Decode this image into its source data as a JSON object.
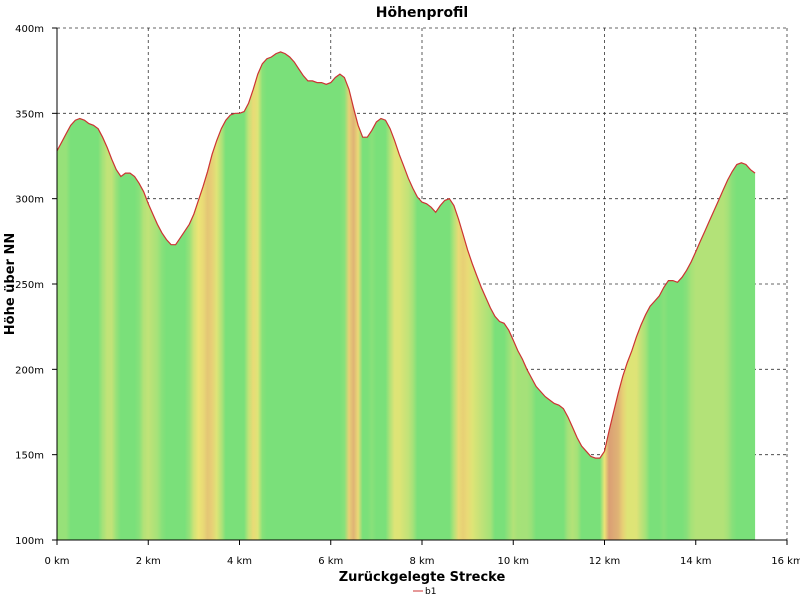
{
  "chart_data": {
    "type": "area",
    "title": "Höhenprofil",
    "xlabel": "Zurückgelegte Strecke",
    "ylabel": "Höhe über NN",
    "xlim": [
      0,
      16
    ],
    "ylim": [
      100,
      400
    ],
    "x_unit": "km",
    "y_unit": "m",
    "grid": true,
    "legend_position": "bottom-center",
    "x_ticks": [
      {
        "value": 0,
        "label": "0 km"
      },
      {
        "value": 2,
        "label": "2 km"
      },
      {
        "value": 4,
        "label": "4 km"
      },
      {
        "value": 6,
        "label": "6 km"
      },
      {
        "value": 8,
        "label": "8 km"
      },
      {
        "value": 10,
        "label": "10 km"
      },
      {
        "value": 12,
        "label": "12 km"
      },
      {
        "value": 14,
        "label": "14 km"
      },
      {
        "value": 16,
        "label": "16 km"
      }
    ],
    "y_ticks": [
      {
        "value": 100,
        "label": "100m"
      },
      {
        "value": 150,
        "label": "150m"
      },
      {
        "value": 200,
        "label": "200m"
      },
      {
        "value": 250,
        "label": "250m"
      },
      {
        "value": 300,
        "label": "300m"
      },
      {
        "value": 350,
        "label": "350m"
      },
      {
        "value": 400,
        "label": "400m"
      }
    ],
    "series": [
      {
        "name": "b1",
        "line_color": "#cc3333",
        "x": [
          0,
          0.1,
          0.2,
          0.3,
          0.4,
          0.5,
          0.6,
          0.7,
          0.8,
          0.9,
          1.0,
          1.1,
          1.2,
          1.3,
          1.4,
          1.5,
          1.6,
          1.7,
          1.8,
          1.9,
          2.0,
          2.1,
          2.2,
          2.3,
          2.4,
          2.5,
          2.6,
          2.7,
          2.8,
          2.9,
          3.0,
          3.1,
          3.2,
          3.3,
          3.4,
          3.5,
          3.6,
          3.7,
          3.8,
          3.9,
          4.0,
          4.1,
          4.2,
          4.3,
          4.4,
          4.5,
          4.6,
          4.7,
          4.8,
          4.9,
          5.0,
          5.1,
          5.2,
          5.3,
          5.4,
          5.5,
          5.6,
          5.7,
          5.8,
          5.9,
          6.0,
          6.1,
          6.2,
          6.3,
          6.4,
          6.5,
          6.6,
          6.7,
          6.8,
          6.9,
          7.0,
          7.1,
          7.2,
          7.3,
          7.4,
          7.5,
          7.6,
          7.7,
          7.8,
          7.9,
          8.0,
          8.1,
          8.2,
          8.3,
          8.4,
          8.5,
          8.6,
          8.7,
          8.8,
          8.9,
          9.0,
          9.1,
          9.2,
          9.3,
          9.4,
          9.5,
          9.6,
          9.7,
          9.8,
          9.9,
          10.0,
          10.1,
          10.2,
          10.3,
          10.4,
          10.5,
          10.6,
          10.7,
          10.8,
          10.9,
          11.0,
          11.1,
          11.2,
          11.3,
          11.4,
          11.5,
          11.6,
          11.7,
          11.8,
          11.9,
          12.0,
          12.1,
          12.2,
          12.3,
          12.4,
          12.5,
          12.6,
          12.7,
          12.8,
          12.9,
          13.0,
          13.1,
          13.2,
          13.3,
          13.4,
          13.5,
          13.6,
          13.7,
          13.8,
          13.9,
          14.0,
          14.1,
          14.2,
          14.3,
          14.4,
          14.5,
          14.6,
          14.7,
          14.8,
          14.9,
          15.0,
          15.1,
          15.2,
          15.3
        ],
        "y": [
          328,
          333,
          338,
          343,
          346,
          347,
          346,
          344,
          343,
          341,
          336,
          330,
          323,
          317,
          313,
          315,
          315,
          313,
          309,
          304,
          297,
          291,
          285,
          280,
          276,
          273,
          273,
          277,
          281,
          285,
          291,
          299,
          307,
          316,
          326,
          334,
          341,
          346,
          349,
          350,
          350,
          351,
          356,
          364,
          373,
          379,
          382,
          383,
          385,
          386,
          385,
          383,
          380,
          376,
          372,
          369,
          369,
          368,
          368,
          367,
          368,
          371,
          373,
          371,
          364,
          353,
          343,
          336,
          336,
          340,
          345,
          347,
          346,
          341,
          334,
          326,
          319,
          312,
          306,
          301,
          298,
          297,
          295,
          292,
          296,
          299,
          300,
          296,
          288,
          279,
          270,
          262,
          255,
          248,
          242,
          236,
          231,
          228,
          227,
          223,
          217,
          211,
          206,
          200,
          195,
          190,
          187,
          184,
          182,
          180,
          179,
          177,
          172,
          166,
          160,
          155,
          152,
          149,
          148,
          148,
          152,
          164,
          175,
          186,
          196,
          204,
          211,
          219,
          226,
          232,
          237,
          240,
          243,
          248,
          252,
          252,
          251,
          254,
          258,
          263,
          269,
          275,
          281,
          287,
          293,
          299,
          305,
          311,
          316,
          320,
          321,
          320,
          317,
          315
        ]
      }
    ]
  }
}
